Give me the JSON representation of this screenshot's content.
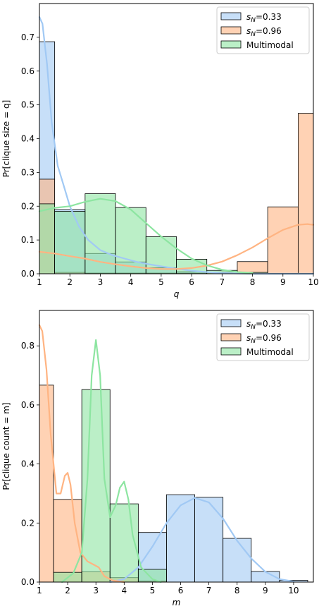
{
  "chart_data": [
    {
      "type": "histogram+kde",
      "xlabel": "q",
      "ylabel": "Pr[clique size = q]",
      "xlim": [
        1,
        10
      ],
      "ylim": [
        0,
        0.8
      ],
      "xticks": [
        "1",
        "2",
        "3",
        "4",
        "5",
        "6",
        "7",
        "8",
        "9",
        "10"
      ],
      "yticks": [
        "0.0",
        "0.1",
        "0.2",
        "0.3",
        "0.4",
        "0.5",
        "0.6",
        "0.7"
      ],
      "legend_position": "top-right",
      "bin_edges": [
        1,
        1.5,
        2.5,
        3.5,
        4.5,
        5.5,
        6.5,
        7.5,
        8.5,
        9.5,
        10
      ],
      "series": [
        {
          "name": "s_N=0.33",
          "label_main": "s",
          "label_sub": "N",
          "label_rest": "=0.33",
          "color": "#a1c9f4",
          "edge": "#4a7fc1",
          "values": [
            0.687,
            0.19,
            0.06,
            0.035,
            0.018,
            0.006,
            0.002,
            0.001,
            0.0,
            0.0
          ],
          "kde_x": [
            1.0,
            1.1,
            1.25,
            1.4,
            1.6,
            1.8,
            2.0,
            2.3,
            2.6,
            3.0,
            3.4,
            3.8,
            4.2,
            4.6,
            5.0,
            5.5,
            6.0,
            6.5,
            7.0,
            8.0,
            9.0,
            10.0
          ],
          "kde_y": [
            0.76,
            0.74,
            0.62,
            0.45,
            0.32,
            0.26,
            0.2,
            0.14,
            0.1,
            0.07,
            0.055,
            0.045,
            0.035,
            0.028,
            0.022,
            0.015,
            0.009,
            0.005,
            0.002,
            0.0,
            0.0,
            0.0
          ]
        },
        {
          "name": "s_N=0.96",
          "label_main": "s",
          "label_sub": "N",
          "label_rest": "=0.96",
          "color": "#ffb482",
          "edge": "#c0693a",
          "values": [
            0.28,
            0.004,
            0.002,
            0.002,
            0.002,
            0.002,
            0.005,
            0.036,
            0.198,
            0.475
          ],
          "kde_x": [
            1.0,
            1.5,
            2.0,
            2.5,
            3.0,
            3.5,
            4.0,
            4.5,
            5.0,
            5.5,
            6.0,
            6.5,
            7.0,
            7.5,
            8.0,
            8.5,
            9.0,
            9.5,
            9.8,
            10.0
          ],
          "kde_y": [
            0.065,
            0.06,
            0.052,
            0.045,
            0.035,
            0.028,
            0.022,
            0.017,
            0.014,
            0.014,
            0.017,
            0.024,
            0.036,
            0.055,
            0.078,
            0.105,
            0.13,
            0.145,
            0.147,
            0.145
          ]
        },
        {
          "name": "Multimodal",
          "color": "#8de5a1",
          "edge": "#3f9f55",
          "values": [
            0.207,
            0.185,
            0.237,
            0.196,
            0.11,
            0.043,
            0.01,
            0.004,
            0.0,
            0.0
          ],
          "kde_x": [
            1.0,
            1.5,
            2.0,
            2.5,
            3.0,
            3.5,
            4.0,
            4.5,
            5.0,
            5.5,
            6.0,
            6.5,
            7.0,
            7.5,
            8.0
          ],
          "kde_y": [
            0.185,
            0.195,
            0.2,
            0.213,
            0.222,
            0.215,
            0.19,
            0.15,
            0.11,
            0.075,
            0.045,
            0.025,
            0.012,
            0.005,
            0.002
          ]
        }
      ]
    },
    {
      "type": "histogram+kde",
      "xlabel": "m",
      "ylabel": "Pr[clique count = m]",
      "xlim": [
        1,
        10.7
      ],
      "ylim": [
        0,
        0.92
      ],
      "xticks": [
        "1",
        "2",
        "3",
        "4",
        "5",
        "6",
        "7",
        "8",
        "9",
        "10"
      ],
      "yticks": [
        "0.0",
        "0.2",
        "0.4",
        "0.6",
        "0.8"
      ],
      "legend_position": "top-right",
      "bin_edges": [
        1,
        1.5,
        2.5,
        3.5,
        4.5,
        5.5,
        6.5,
        7.5,
        8.5,
        9.5,
        10.5
      ],
      "series": [
        {
          "name": "s_N=0.33",
          "label_main": "s",
          "label_sub": "N",
          "label_rest": "=0.33",
          "color": "#a1c9f4",
          "edge": "#4a7fc1",
          "values": [
            0.0,
            0.0,
            0.0,
            0.0,
            0.168,
            0.296,
            0.287,
            0.148,
            0.036,
            0.006
          ],
          "kde_x": [
            3.5,
            4.0,
            4.5,
            5.0,
            5.5,
            6.0,
            6.5,
            7.0,
            7.5,
            8.0,
            8.5,
            9.0,
            9.5,
            10.0
          ],
          "kde_y": [
            0.0,
            0.01,
            0.05,
            0.12,
            0.2,
            0.26,
            0.285,
            0.27,
            0.215,
            0.14,
            0.08,
            0.035,
            0.01,
            0.002
          ]
        },
        {
          "name": "s_N=0.96",
          "label_main": "s",
          "label_sub": "N",
          "label_rest": "=0.96",
          "color": "#ffb482",
          "edge": "#c0693a",
          "values": [
            0.667,
            0.28,
            0.035,
            0.015,
            0.003,
            0.0,
            0.0,
            0.0,
            0.0,
            0.0
          ],
          "kde_x": [
            1.0,
            1.1,
            1.25,
            1.4,
            1.6,
            1.75,
            1.9,
            2.0,
            2.1,
            2.25,
            2.45,
            2.7,
            2.9,
            3.1,
            3.3,
            3.6,
            4.0
          ],
          "kde_y": [
            0.87,
            0.85,
            0.72,
            0.5,
            0.3,
            0.3,
            0.36,
            0.37,
            0.33,
            0.2,
            0.1,
            0.07,
            0.06,
            0.05,
            0.02,
            0.005,
            0.0
          ]
        },
        {
          "name": "Multimodal",
          "color": "#8de5a1",
          "edge": "#3f9f55",
          "values": [
            0.0,
            0.033,
            0.652,
            0.265,
            0.043,
            0.0,
            0.0,
            0.0,
            0.0,
            0.0
          ],
          "kde_x": [
            1.8,
            2.2,
            2.5,
            2.7,
            2.85,
            3.0,
            3.15,
            3.3,
            3.5,
            3.7,
            3.85,
            4.0,
            4.15,
            4.3,
            4.6,
            5.0,
            5.3
          ],
          "kde_y": [
            0.0,
            0.03,
            0.1,
            0.35,
            0.7,
            0.82,
            0.7,
            0.35,
            0.22,
            0.26,
            0.32,
            0.34,
            0.28,
            0.16,
            0.05,
            0.01,
            0.0
          ]
        }
      ]
    }
  ]
}
